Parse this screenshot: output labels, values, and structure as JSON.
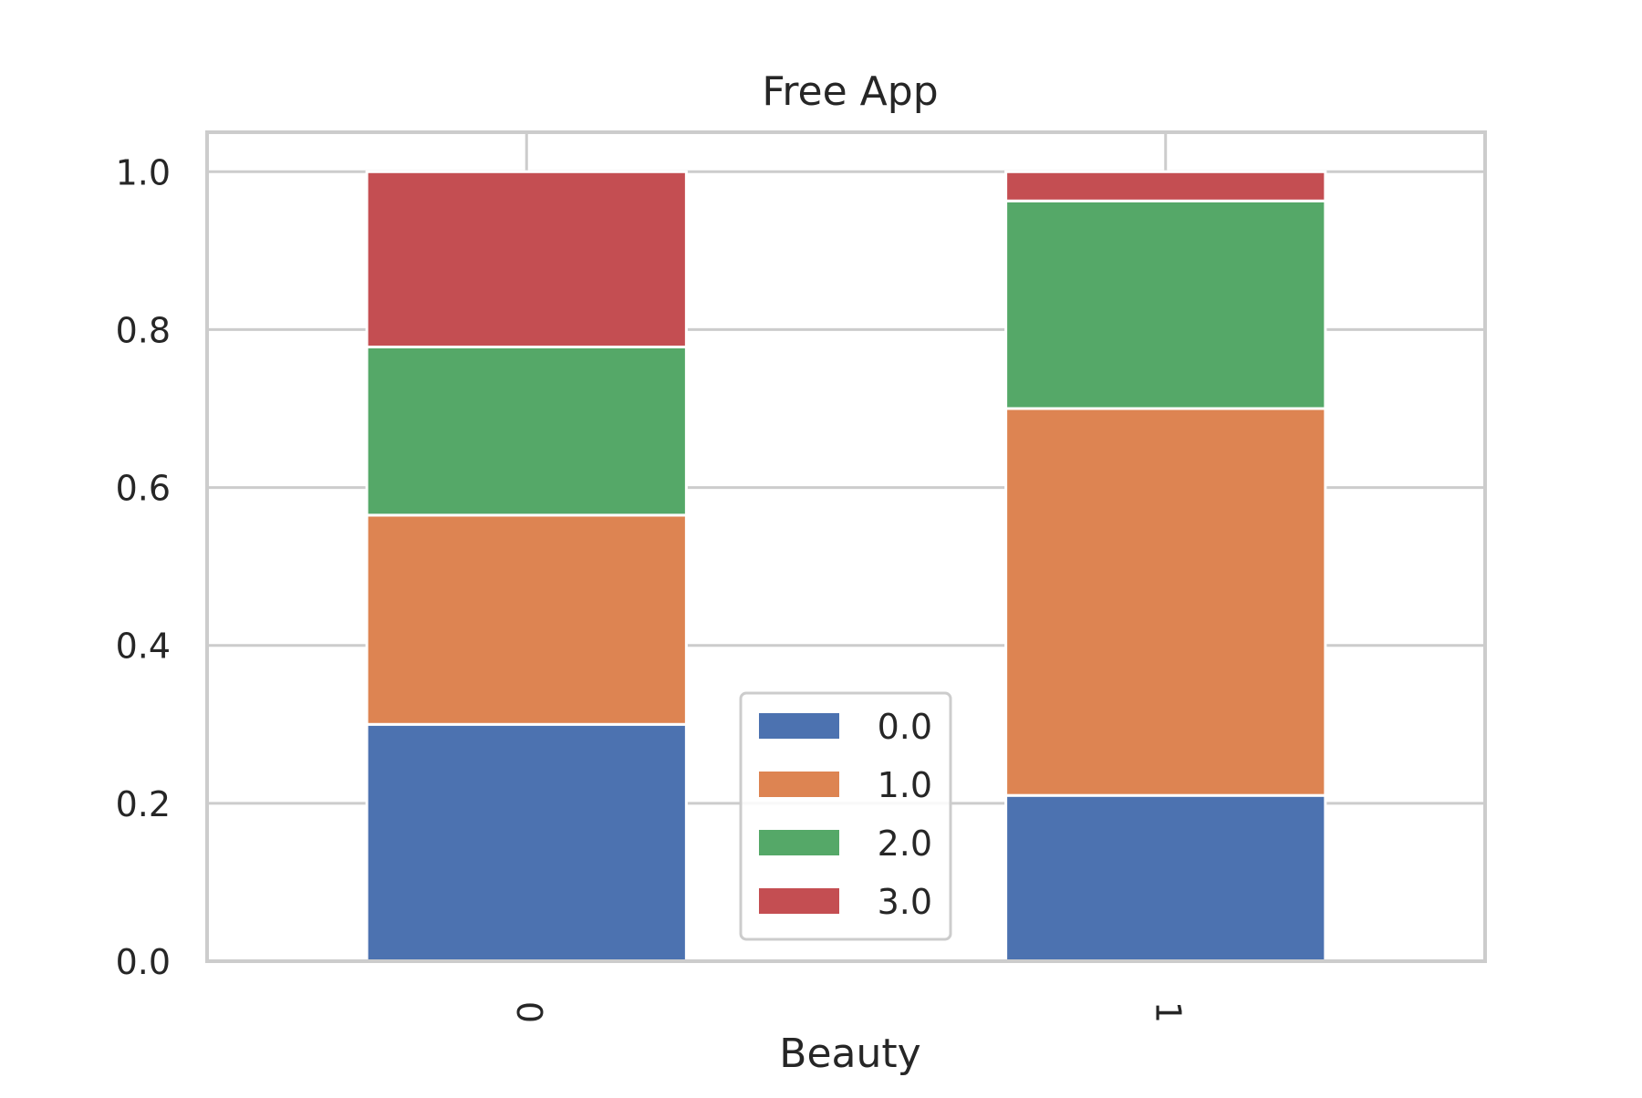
{
  "chart_data": {
    "type": "bar",
    "stacked": true,
    "title": "Free App",
    "xlabel": "Beauty",
    "ylabel": "",
    "categories": [
      "0",
      "1"
    ],
    "ylim": [
      0,
      1.05
    ],
    "yticks": [
      "0.0",
      "0.2",
      "0.4",
      "0.6",
      "0.8",
      "1.0"
    ],
    "grid": true,
    "legend_position": "bottom-center",
    "series": [
      {
        "name": "0.0",
        "color": "#4c72b0",
        "values": [
          0.3,
          0.21
        ]
      },
      {
        "name": "1.0",
        "color": "#dd8452",
        "values": [
          0.265,
          0.49
        ]
      },
      {
        "name": "2.0",
        "color": "#55a868",
        "values": [
          0.213,
          0.263
        ]
      },
      {
        "name": "3.0",
        "color": "#c44e52",
        "values": [
          0.222,
          0.037
        ]
      }
    ]
  }
}
